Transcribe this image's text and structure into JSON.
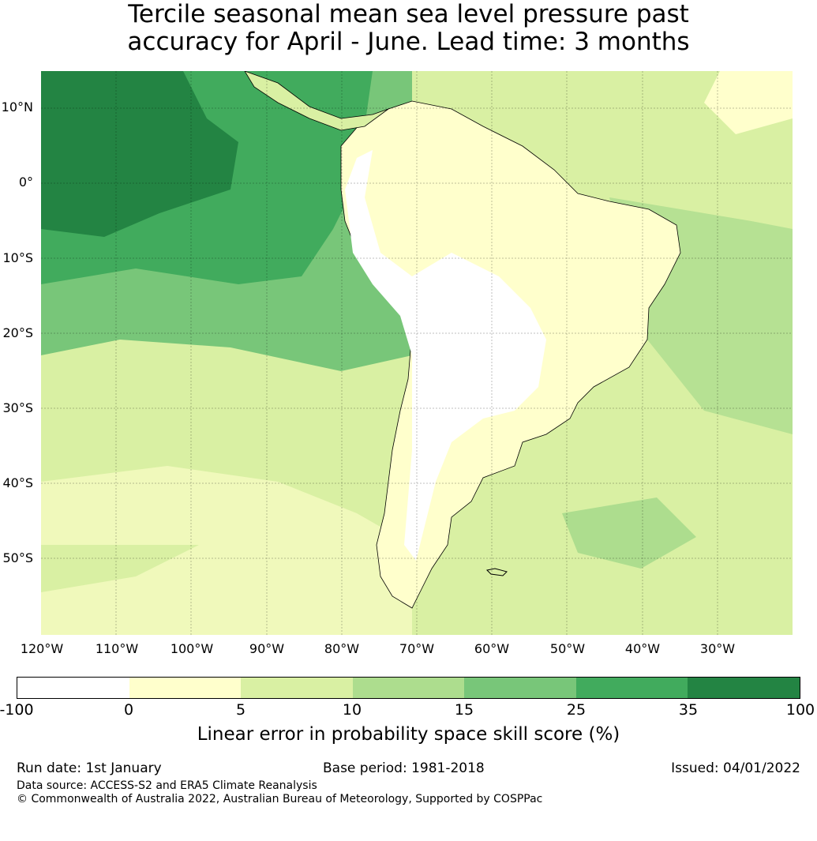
{
  "title": {
    "line1": "Tercile seasonal mean sea level pressure past",
    "line2": "accuracy for April - June. Lead time: 3 months"
  },
  "lat_labels": [
    "10°N",
    "0°",
    "10°S",
    "20°S",
    "30°S",
    "40°S",
    "50°S"
  ],
  "lon_labels": [
    "120°W",
    "110°W",
    "100°W",
    "90°W",
    "80°W",
    "70°W",
    "60°W",
    "50°W",
    "40°W",
    "30°W"
  ],
  "colorbar": {
    "ticks": [
      "-100",
      "0",
      "5",
      "10",
      "15",
      "25",
      "35",
      "100"
    ],
    "colors": [
      "#ffffff",
      "#ffffcc",
      "#d9f0a3",
      "#addd8e",
      "#78c679",
      "#41ab5d",
      "#238443"
    ],
    "label": "Linear error in probability space skill score (%)"
  },
  "footer": {
    "run_date": "Run date: 1st January",
    "base_period": "Base period: 1981-2018",
    "issued": "Issued: 04/01/2022",
    "data_source": "Data source: ACCESS-S2 and ERA5 Climate Reanalysis",
    "copyright": "© Commonwealth of Australia 2022, Australian Bureau of Meteorology, Supported by COSPPac"
  }
}
